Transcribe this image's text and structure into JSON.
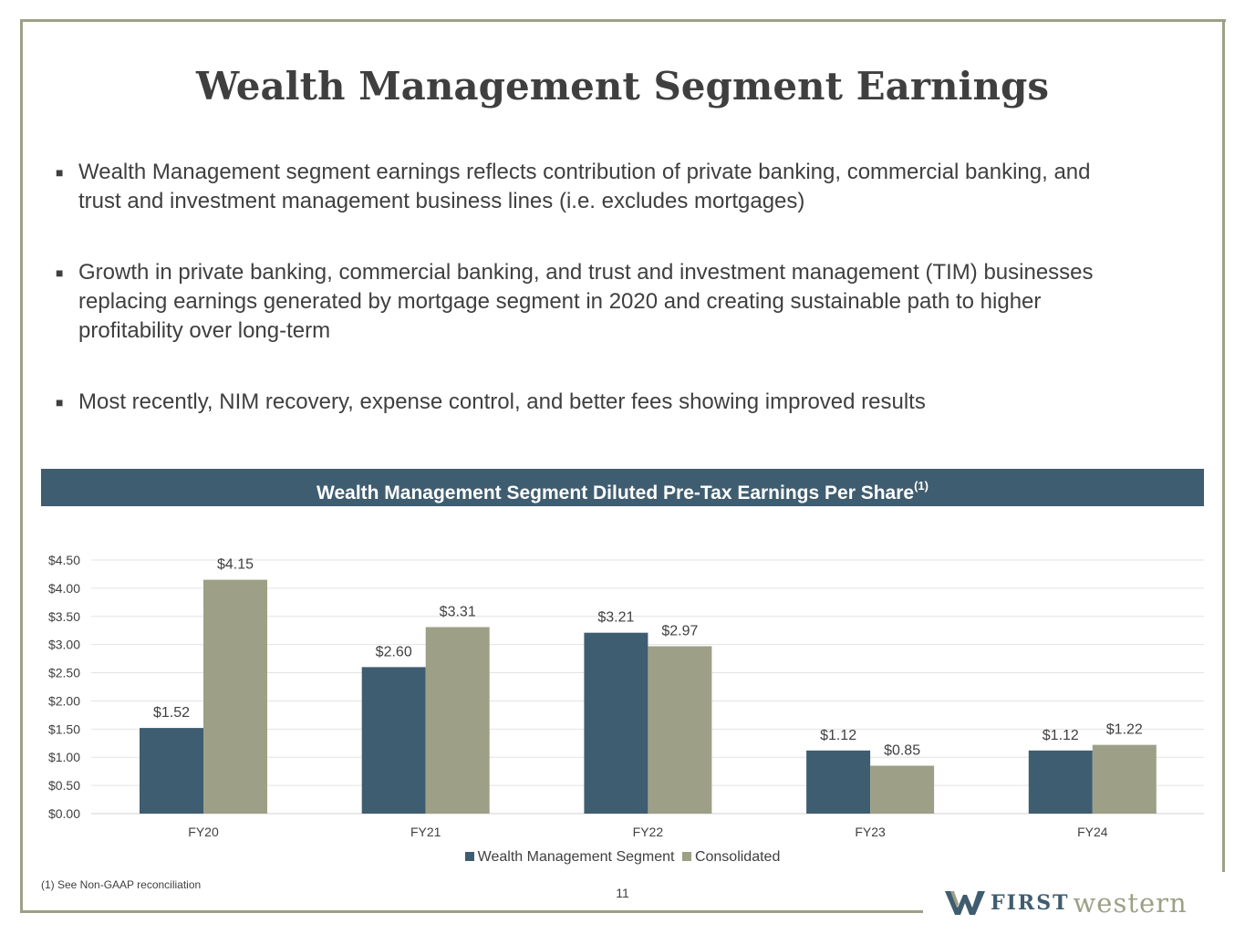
{
  "slide": {
    "title": "Wealth Management Segment Earnings",
    "bullets": [
      "Wealth Management segment earnings reflects contribution of private banking, commercial banking, and trust and investment management business lines (i.e. excludes mortgages)",
      "Growth in private banking, commercial banking, and trust and investment management (TIM) businesses replacing earnings generated by mortgage segment in 2020 and creating sustainable path to higher profitability over long-term",
      "Most recently, NIM recovery, expense control, and better fees showing improved results"
    ],
    "footnote": "(1)  See Non-GAAP reconciliation",
    "page_number": "11"
  },
  "chart_header": {
    "title": "Wealth Management Segment Diluted Pre-Tax Earnings Per Share",
    "superscript": "(1)"
  },
  "logo": {
    "first": "FIRST",
    "western": "western"
  },
  "colors": {
    "series1": "#3f5d70",
    "series2": "#9da086",
    "frame": "#9da086"
  },
  "chart_data": {
    "type": "bar",
    "title": "Wealth Management Segment Diluted Pre-Tax Earnings Per Share(1)",
    "categories": [
      "FY20",
      "FY21",
      "FY22",
      "FY23",
      "FY24"
    ],
    "series": [
      {
        "name": "Wealth Management Segment",
        "values": [
          1.52,
          2.6,
          3.21,
          1.12,
          1.12
        ],
        "labels": [
          "$1.52",
          "$2.60",
          "$3.21",
          "$1.12",
          "$1.12"
        ]
      },
      {
        "name": "Consolidated",
        "values": [
          4.15,
          3.31,
          2.97,
          0.85,
          1.22
        ],
        "labels": [
          "$4.15",
          "$3.31",
          "$2.97",
          "$0.85",
          "$1.22"
        ]
      }
    ],
    "yticks": [
      "$0.00",
      "$0.50",
      "$1.00",
      "$1.50",
      "$2.00",
      "$2.50",
      "$3.00",
      "$3.50",
      "$4.00",
      "$4.50"
    ],
    "ylim": [
      0,
      4.5
    ],
    "grid": true,
    "legend": "bottom-center",
    "xlabel": "",
    "ylabel": ""
  }
}
